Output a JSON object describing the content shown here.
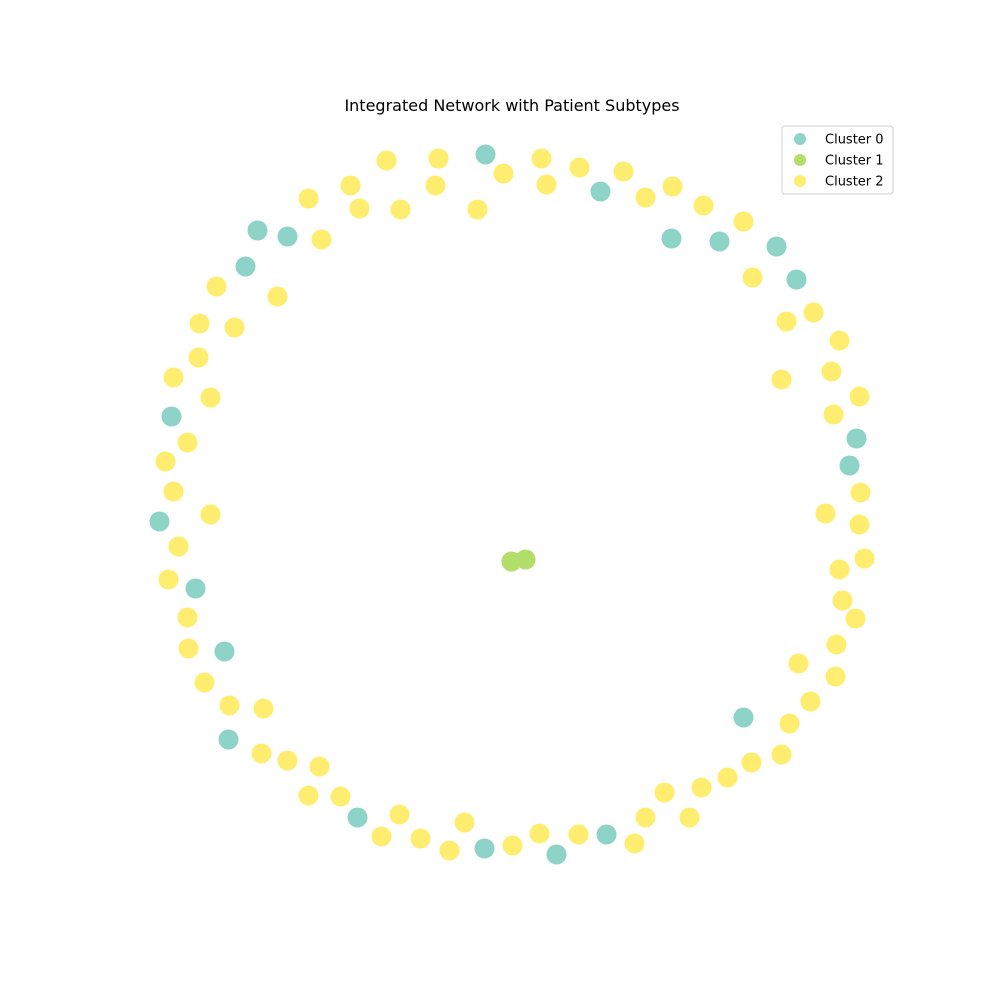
{
  "chart_data": {
    "type": "scatter",
    "title": "Integrated Network with Patient Subtypes",
    "xlabel": "",
    "ylabel": "",
    "axes_visible": false,
    "grid": false,
    "legend_position": "top-right",
    "series": [
      {
        "name": "Cluster 0",
        "color": "#8dd3c7",
        "points": [
          [
            485.5,
            154.5
          ],
          [
            600.5,
            191.5
          ],
          [
            257.5,
            230.5
          ],
          [
            287.5,
            236.5
          ],
          [
            671.5,
            238.5
          ],
          [
            719.5,
            241.5
          ],
          [
            776.5,
            246.5
          ],
          [
            245.5,
            266.5
          ],
          [
            796.5,
            279.5
          ],
          [
            171.5,
            416.5
          ],
          [
            856.5,
            438.5
          ],
          [
            849.5,
            465.5
          ],
          [
            159.5,
            521.5
          ],
          [
            195.5,
            588.5
          ],
          [
            224.5,
            651.5
          ],
          [
            743.5,
            717.5
          ],
          [
            228.5,
            739.5
          ],
          [
            357.5,
            817.5
          ],
          [
            606.5,
            834.5
          ],
          [
            484.5,
            848.5
          ],
          [
            556.5,
            854.5
          ]
        ]
      },
      {
        "name": "Cluster 1",
        "color": "#b3de69",
        "points": [
          [
            511.5,
            561.5
          ],
          [
            525.5,
            559.5
          ]
        ]
      },
      {
        "name": "Cluster 2",
        "color": "#ffed6f",
        "points": [
          [
            386.5,
            160.5
          ],
          [
            438.5,
            158.5
          ],
          [
            541.5,
            158.5
          ],
          [
            503.5,
            173.5
          ],
          [
            579.5,
            167.5
          ],
          [
            623.5,
            171.5
          ],
          [
            350.5,
            185.5
          ],
          [
            435.5,
            185.5
          ],
          [
            546.5,
            184.5
          ],
          [
            672.5,
            186.5
          ],
          [
            308.5,
            198.5
          ],
          [
            645.5,
            197.5
          ],
          [
            359.5,
            208.5
          ],
          [
            400.5,
            209.5
          ],
          [
            477.5,
            209.5
          ],
          [
            703.5,
            205.5
          ],
          [
            743.5,
            221.5
          ],
          [
            321.5,
            239.5
          ],
          [
            752.5,
            277.5
          ],
          [
            216.5,
            286.5
          ],
          [
            277.5,
            296.5
          ],
          [
            813.5,
            312.5
          ],
          [
            786.5,
            321.5
          ],
          [
            199.5,
            323.5
          ],
          [
            234.5,
            327.5
          ],
          [
            839.5,
            340.5
          ],
          [
            198.5,
            357.5
          ],
          [
            831.5,
            371.5
          ],
          [
            173.5,
            377.5
          ],
          [
            781.5,
            379.5
          ],
          [
            210.5,
            397.5
          ],
          [
            859.5,
            396.5
          ],
          [
            833.5,
            414.5
          ],
          [
            187.5,
            442.5
          ],
          [
            165.5,
            461.5
          ],
          [
            173.5,
            491.5
          ],
          [
            860.5,
            492.5
          ],
          [
            210.5,
            514.5
          ],
          [
            825.5,
            513.5
          ],
          [
            859.5,
            524.5
          ],
          [
            178.5,
            546.5
          ],
          [
            864.5,
            558.5
          ],
          [
            168.5,
            579.5
          ],
          [
            839.5,
            569.5
          ],
          [
            842.5,
            600.5
          ],
          [
            187.5,
            617.5
          ],
          [
            855.5,
            618.5
          ],
          [
            188.5,
            648.5
          ],
          [
            836.5,
            644.5
          ],
          [
            798.5,
            663.5
          ],
          [
            835.5,
            676.5
          ],
          [
            204.5,
            682.5
          ],
          [
            810.5,
            701.5
          ],
          [
            229.5,
            705.5
          ],
          [
            263.5,
            708.5
          ],
          [
            789.5,
            723.5
          ],
          [
            261.5,
            753.5
          ],
          [
            287.5,
            760.5
          ],
          [
            781.5,
            754.5
          ],
          [
            319.5,
            766.5
          ],
          [
            751.5,
            762.5
          ],
          [
            727.5,
            777.5
          ],
          [
            701.5,
            787.5
          ],
          [
            664.5,
            792.5
          ],
          [
            308.5,
            795.5
          ],
          [
            340.5,
            796.5
          ],
          [
            399.5,
            814.5
          ],
          [
            645.5,
            817.5
          ],
          [
            689.5,
            817.5
          ],
          [
            464.5,
            822.5
          ],
          [
            381.5,
            836.5
          ],
          [
            420.5,
            838.5
          ],
          [
            539.5,
            833.5
          ],
          [
            578.5,
            834.5
          ],
          [
            634.5,
            843.5
          ],
          [
            512.5,
            845.5
          ],
          [
            449.5,
            850.5
          ]
        ]
      }
    ]
  }
}
